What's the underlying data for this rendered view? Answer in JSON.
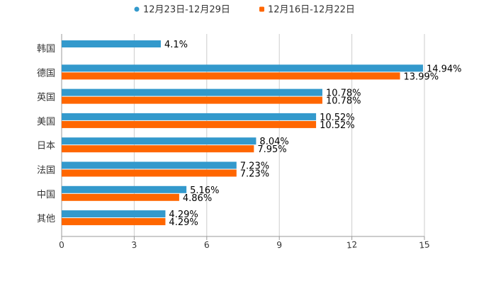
{
  "chart_data": {
    "type": "bar",
    "orientation": "horizontal",
    "title": "",
    "xlabel": "",
    "ylabel": "",
    "xlim": [
      0,
      15
    ],
    "ticks": [
      0,
      3,
      6,
      9,
      12,
      15
    ],
    "tick_labels": [
      "0",
      "3",
      "6",
      "9",
      "12",
      "15"
    ],
    "grid": true,
    "legend_position": "top-center",
    "value_suffix": "%",
    "categories": [
      "韩国",
      "德国",
      "英国",
      "美国",
      "日本",
      "法国",
      "中国",
      "其他"
    ],
    "series": [
      {
        "name": "12月23日-12月29日",
        "color": "#3399cc",
        "values": [
          4.1,
          14.94,
          10.78,
          10.52,
          8.04,
          7.23,
          5.16,
          4.29
        ],
        "labels": [
          "4.1%",
          "14.94%",
          "10.78%",
          "10.52%",
          "8.04%",
          "7.23%",
          "5.16%",
          "4.29%"
        ]
      },
      {
        "name": "12月16日-12月22日",
        "color": "#ff6600",
        "values": [
          null,
          13.99,
          10.78,
          10.52,
          7.95,
          7.23,
          4.86,
          4.29
        ],
        "labels": [
          null,
          "13.99%",
          "10.78%",
          "10.52%",
          "7.95%",
          "7.23%",
          "4.86%",
          "4.29%"
        ]
      }
    ]
  }
}
